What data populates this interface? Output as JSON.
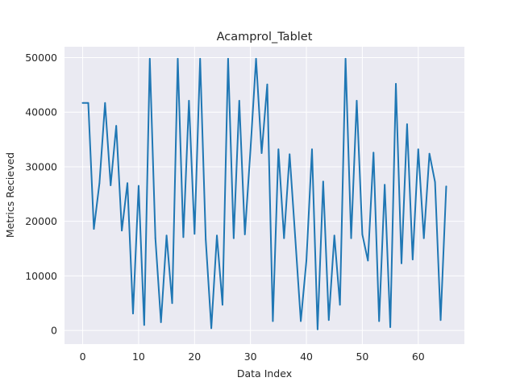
{
  "chart_data": {
    "type": "line",
    "title": "Acamprol_Tablet",
    "xlabel": "Data Index",
    "ylabel": "Metrics Recieved",
    "xlim": [
      -3.25,
      68.25
    ],
    "ylim": [
      -2500,
      52000
    ],
    "xticks": [
      0,
      10,
      20,
      30,
      40,
      50,
      60
    ],
    "yticks": [
      0,
      10000,
      20000,
      30000,
      40000,
      50000
    ],
    "grid": true,
    "series": [
      {
        "color": "#1f77b4",
        "x": [
          0,
          1,
          2,
          3,
          4,
          5,
          6,
          7,
          8,
          9,
          10,
          11,
          12,
          13,
          14,
          15,
          16,
          17,
          18,
          19,
          20,
          21,
          22,
          23,
          24,
          25,
          26,
          27,
          28,
          29,
          30,
          31,
          32,
          33,
          34,
          35,
          36,
          37,
          38,
          39,
          40,
          41,
          42,
          43,
          44,
          45,
          46,
          47,
          48,
          49,
          50,
          51,
          52,
          53,
          54,
          55,
          56,
          57,
          58,
          59,
          60,
          61,
          62,
          63,
          64,
          65
        ],
        "values": [
          41700,
          41700,
          18600,
          27000,
          41700,
          26600,
          37500,
          18300,
          27000,
          3100,
          26500,
          1000,
          49800,
          16900,
          1500,
          17400,
          5000,
          49800,
          17100,
          42100,
          17700,
          49800,
          16700,
          400,
          17400,
          4700,
          49800,
          16900,
          42100,
          17600,
          33100,
          49800,
          32500,
          45100,
          1700,
          33200,
          16900,
          32300,
          17100,
          1700,
          12800,
          33200,
          200,
          27300,
          1900,
          17400,
          4700,
          49800,
          16900,
          42100,
          17600,
          12800,
          32600,
          1700,
          26700,
          600,
          45200,
          12300,
          37800,
          13000,
          33200,
          16900,
          32400,
          27200,
          1900,
          26400
        ]
      }
    ]
  }
}
